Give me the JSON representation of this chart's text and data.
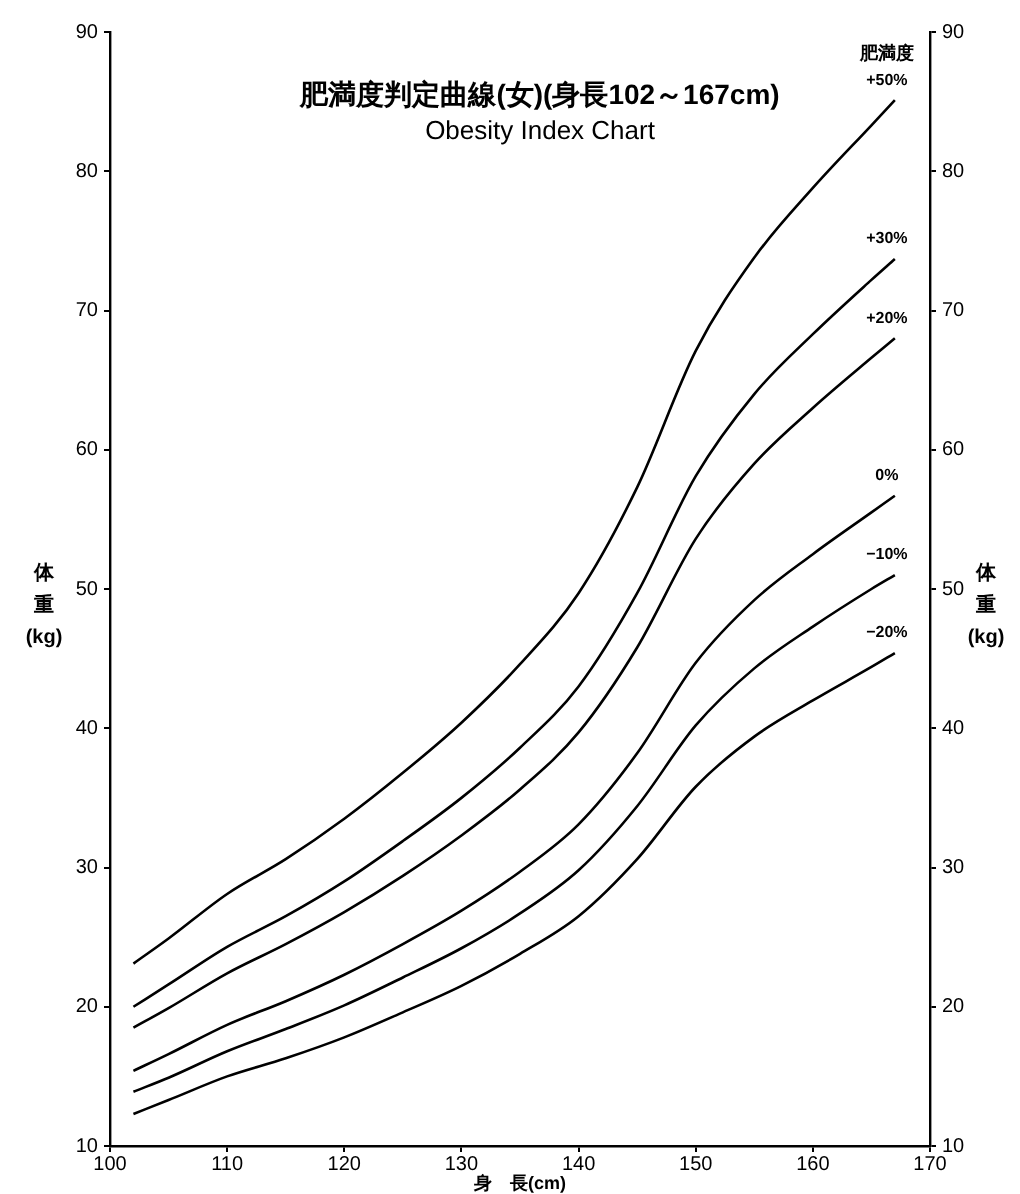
{
  "chart_data": {
    "type": "line",
    "title": "肥満度判定曲線(女)(身長102～167cm)",
    "subtitle": "Obesity Index Chart",
    "xlabel": "身　長(cm)",
    "ylabel": "体重(kg)",
    "y2label": "体重(kg)",
    "x": [
      102,
      105,
      110,
      115,
      120,
      125,
      130,
      135,
      140,
      145,
      150,
      155,
      160,
      165,
      167
    ],
    "series": [
      {
        "name": "+50%",
        "color": "#000000",
        "values": [
          23.1,
          24.9,
          28.1,
          30.6,
          33.5,
          36.8,
          40.4,
          44.6,
          49.7,
          57.3,
          67.1,
          73.8,
          78.8,
          83.3,
          85.1
        ]
      },
      {
        "name": "+30%",
        "color": "#000000",
        "values": [
          20.0,
          21.6,
          24.3,
          26.5,
          29.0,
          31.9,
          35.0,
          38.6,
          43.0,
          49.7,
          58.1,
          64.0,
          68.3,
          72.2,
          73.7
        ]
      },
      {
        "name": "+20%",
        "color": "#000000",
        "values": [
          18.5,
          19.9,
          22.4,
          24.5,
          26.8,
          29.4,
          32.3,
          35.6,
          39.7,
          45.8,
          53.6,
          59.0,
          63.0,
          66.6,
          68.0
        ]
      },
      {
        "name": "0%",
        "color": "#000000",
        "values": [
          15.4,
          16.6,
          18.7,
          20.4,
          22.3,
          24.5,
          26.9,
          29.7,
          33.1,
          38.2,
          44.7,
          49.2,
          52.5,
          55.5,
          56.7
        ]
      },
      {
        "name": "−10%",
        "color": "#000000",
        "values": [
          13.9,
          14.9,
          16.8,
          18.4,
          20.1,
          22.1,
          24.2,
          26.7,
          29.8,
          34.4,
          40.2,
          44.3,
          47.3,
          50.0,
          51.0
        ]
      },
      {
        "name": "−20%",
        "color": "#000000",
        "values": [
          12.3,
          13.3,
          15.0,
          16.3,
          17.8,
          19.6,
          21.5,
          23.8,
          26.5,
          30.6,
          35.8,
          39.4,
          42.0,
          44.4,
          45.4
        ]
      }
    ],
    "annotations": [
      "肥満度"
    ],
    "xlim": [
      100,
      170
    ],
    "xticks": [
      100,
      110,
      120,
      130,
      140,
      150,
      160,
      170
    ],
    "ylim": [
      10,
      90
    ],
    "yticks": [
      10,
      20,
      30,
      40,
      50,
      60,
      70,
      80,
      90
    ],
    "y2lim": [
      10,
      90
    ],
    "y2ticks": [
      10,
      20,
      30,
      40,
      50,
      60,
      70,
      80,
      90
    ],
    "grid": false,
    "legend": false,
    "marker": "none",
    "line_style": "solid"
  }
}
